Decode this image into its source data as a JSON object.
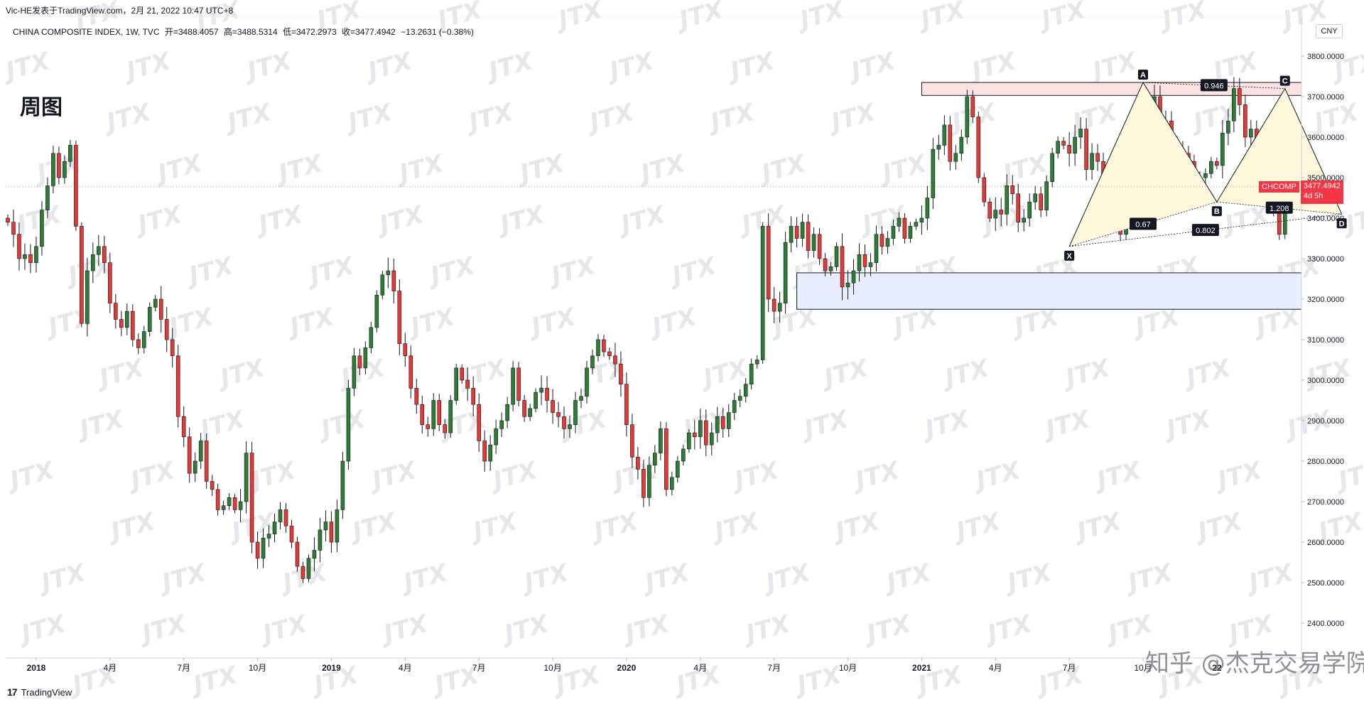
{
  "header": {
    "publisher_line": "Vic-HE发表于TradingView.com，2月 21, 2022 10:47 UTC+8",
    "symbol_line": "CHINA COMPOSITE INDEX, 1W, TVC",
    "open_label": "开=3488.4057",
    "high_label": "高=3488.5314",
    "low_label": "低=3472.2973",
    "close_label": "收=3477.4942",
    "change_label": "−13.2631 (−0.38%)"
  },
  "timeframe_label": "周图",
  "currency_badge": "CNY",
  "price_tag": {
    "symbol": "CHCOMP",
    "price": "3477.4942",
    "countdown": "4d 5h"
  },
  "footer": {
    "brand_logo": "17",
    "brand_name": "TradingView"
  },
  "watermark_text": "JTX",
  "bottom_watermark": "知乎 @杰克交易学院",
  "colors": {
    "up": "#26a69a",
    "up_body": "#2e7d32",
    "down": "#e53935",
    "pattern_fill": "#fff8dc",
    "resistance_zone": "#fde2e2",
    "support_zone": "#e8eeff",
    "grid": "#eef0f4"
  },
  "chart_data": {
    "type": "candlestick",
    "title": "CHINA COMPOSITE INDEX, 1W, TVC",
    "ylim": [
      2320,
      3860
    ],
    "y_ticks": [
      3800,
      3700,
      3600,
      3500,
      3400,
      3300,
      3200,
      3100,
      3000,
      2900,
      2800,
      2700,
      2600,
      2500,
      2400
    ],
    "y_tick_labels": [
      "3800.0000",
      "3700.0000",
      "3600.0000",
      "3500.0000",
      "3400.0000",
      "3300.0000",
      "3200.0000",
      "3100.0000",
      "3000.0000",
      "2900.0000",
      "2800.0000",
      "2700.0000",
      "2600.0000",
      "2500.0000",
      "2400.0000"
    ],
    "x_axis_labels": [
      {
        "label": "2018",
        "week": 5,
        "bold": true
      },
      {
        "label": "4月",
        "week": 18,
        "bold": false
      },
      {
        "label": "7月",
        "week": 31,
        "bold": false
      },
      {
        "label": "10月",
        "week": 44,
        "bold": false
      },
      {
        "label": "2019",
        "week": 57,
        "bold": true
      },
      {
        "label": "4月",
        "week": 70,
        "bold": false
      },
      {
        "label": "7月",
        "week": 83,
        "bold": false
      },
      {
        "label": "10月",
        "week": 96,
        "bold": false
      },
      {
        "label": "2020",
        "week": 109,
        "bold": true
      },
      {
        "label": "4月",
        "week": 122,
        "bold": false
      },
      {
        "label": "7月",
        "week": 135,
        "bold": false
      },
      {
        "label": "10月",
        "week": 148,
        "bold": false
      },
      {
        "label": "2021",
        "week": 161,
        "bold": true
      },
      {
        "label": "4月",
        "week": 174,
        "bold": false
      },
      {
        "label": "7月",
        "week": 187,
        "bold": false
      },
      {
        "label": "10月",
        "week": 200,
        "bold": false
      },
      {
        "label": "22",
        "week": 213,
        "bold": true
      }
    ],
    "close_series": [
      3390,
      3360,
      3300,
      3310,
      3290,
      3330,
      3420,
      3480,
      3560,
      3500,
      3540,
      3580,
      3380,
      3140,
      3270,
      3310,
      3330,
      3290,
      3190,
      3150,
      3130,
      3170,
      3100,
      3080,
      3120,
      3180,
      3200,
      3150,
      3100,
      3060,
      2910,
      2860,
      2770,
      2800,
      2850,
      2750,
      2730,
      2680,
      2690,
      2710,
      2680,
      2700,
      2820,
      2600,
      2560,
      2610,
      2620,
      2650,
      2680,
      2640,
      2600,
      2540,
      2510,
      2560,
      2580,
      2630,
      2650,
      2600,
      2680,
      2800,
      2980,
      3060,
      3030,
      3080,
      3130,
      3210,
      3260,
      3270,
      3220,
      3090,
      3060,
      2980,
      2940,
      2890,
      2880,
      2950,
      2890,
      2870,
      2950,
      3030,
      3000,
      2980,
      2940,
      2850,
      2800,
      2840,
      2880,
      2900,
      2940,
      3030,
      2950,
      2910,
      2930,
      2970,
      2980,
      2950,
      2920,
      2910,
      2880,
      2890,
      2950,
      2960,
      3030,
      3060,
      3100,
      3070,
      3060,
      3040,
      2990,
      2890,
      2810,
      2780,
      2710,
      2790,
      2820,
      2880,
      2730,
      2760,
      2800,
      2830,
      2870,
      2860,
      2900,
      2840,
      2870,
      2910,
      2880,
      2920,
      2950,
      2960,
      2990,
      3040,
      3050,
      3380,
      3200,
      3170,
      3190,
      3340,
      3380,
      3350,
      3390,
      3320,
      3360,
      3300,
      3270,
      3280,
      3330,
      3230,
      3240,
      3270,
      3310,
      3280,
      3290,
      3360,
      3330,
      3350,
      3380,
      3400,
      3350,
      3380,
      3390,
      3400,
      3450,
      3570,
      3580,
      3630,
      3540,
      3560,
      3600,
      3700,
      3650,
      3500,
      3440,
      3400,
      3420,
      3410,
      3480,
      3460,
      3390,
      3400,
      3440,
      3460,
      3420,
      3490,
      3560,
      3590,
      3580,
      3560,
      3600,
      3620,
      3520,
      3560,
      3540,
      3490,
      3470,
      3400,
      3360,
      3430,
      3450,
      3490,
      3520,
      3570,
      3700,
      3610,
      3640,
      3580,
      3570,
      3560,
      3540,
      3480,
      3500,
      3510,
      3540,
      3530,
      3610,
      3640,
      3720,
      3680,
      3600,
      3620,
      3550,
      3560,
      3480,
      3420,
      3360,
      3450,
      3480,
      3490,
      3477
    ],
    "pattern": {
      "name": "harmonic XABCD",
      "points": [
        {
          "label": "X",
          "week": 187,
          "price": 3330
        },
        {
          "label": "A",
          "week": 200,
          "price": 3735
        },
        {
          "label": "B",
          "week": 213,
          "price": 3440
        },
        {
          "label": "C",
          "week": 225,
          "price": 3720
        },
        {
          "label": "D",
          "week": 235,
          "price": 3410
        }
      ],
      "ratio_labels": [
        {
          "text": "0.946",
          "between": "A-C"
        },
        {
          "text": "0.67",
          "between": "X-B"
        },
        {
          "text": "0.802",
          "between": "X-D"
        },
        {
          "text": "1.208",
          "between": "B-D"
        }
      ]
    },
    "zones": [
      {
        "name": "resistance",
        "from_week": 161,
        "price_top": 3735,
        "price_bottom": 3703
      },
      {
        "name": "support",
        "from_week": 139,
        "price_top": 3265,
        "price_bottom": 3175
      }
    ],
    "last_price": 3477.4942
  }
}
